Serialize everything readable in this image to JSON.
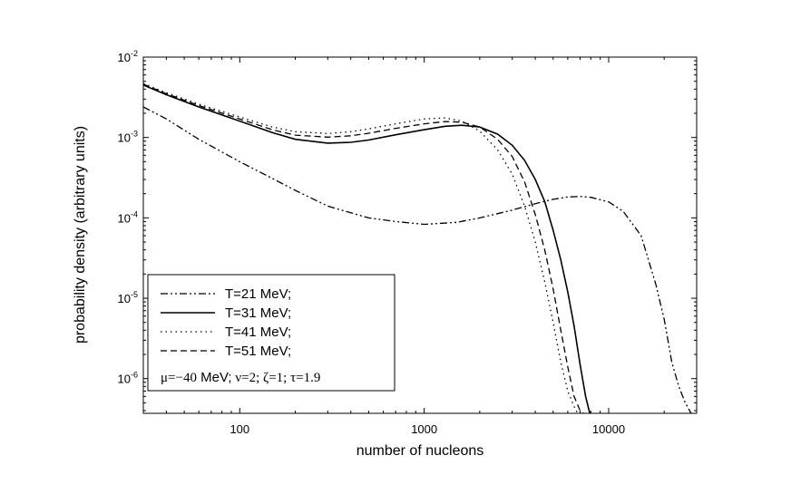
{
  "chart_data": {
    "type": "line",
    "xlabel": "number of nucleons",
    "ylabel": "probability density (arbitrary units)",
    "x_scale": "log",
    "y_scale": "log",
    "xlim": [
      30,
      30000
    ],
    "ylim": [
      3.7e-07,
      0.01
    ],
    "x_ticks": [
      {
        "value": 100,
        "label": "100"
      },
      {
        "value": 1000,
        "label": "1000"
      },
      {
        "value": 10000,
        "label": "10000"
      }
    ],
    "y_ticks": [
      {
        "value": 0.01,
        "base": "10",
        "exp": "-2"
      },
      {
        "value": 0.001,
        "base": "10",
        "exp": "-3"
      },
      {
        "value": 0.0001,
        "base": "10",
        "exp": "-4"
      },
      {
        "value": 1e-05,
        "base": "10",
        "exp": "-5"
      },
      {
        "value": 1e-06,
        "base": "10",
        "exp": "-6"
      }
    ],
    "legend_position": "lower-left",
    "series": [
      {
        "name": "T=21 MeV;",
        "style": "dash-dot-dot",
        "x": [
          30,
          40,
          60,
          100,
          150,
          200,
          300,
          500,
          700,
          1000,
          1500,
          2000,
          3000,
          4000,
          5000,
          6000,
          7000,
          8000,
          10000,
          12000,
          15000,
          18000,
          20000,
          22000,
          24000,
          26000,
          28000
        ],
        "y": [
          0.0024,
          0.0017,
          0.00095,
          0.0005,
          0.00031,
          0.00022,
          0.00014,
          0.0001,
          9e-05,
          8.3e-05,
          8.8e-05,
          0.0001,
          0.000125,
          0.00015,
          0.00017,
          0.000182,
          0.000185,
          0.00018,
          0.000158,
          0.00012,
          6e-05,
          1.5e-05,
          5.5e-06,
          1.6e-06,
          8e-07,
          5e-07,
          3.7e-07
        ]
      },
      {
        "name": "T=31 MeV;",
        "style": "solid",
        "x": [
          30,
          40,
          60,
          100,
          150,
          200,
          300,
          400,
          500,
          700,
          1000,
          1300,
          1600,
          2000,
          2500,
          3000,
          3500,
          4000,
          4500,
          5000,
          5500,
          6000,
          6500,
          7000,
          7500,
          7900
        ],
        "y": [
          0.0045,
          0.0034,
          0.0024,
          0.0016,
          0.00115,
          0.00095,
          0.00085,
          0.00087,
          0.00093,
          0.00108,
          0.00125,
          0.00138,
          0.00142,
          0.00135,
          0.0011,
          0.0008,
          0.00052,
          0.0003,
          0.00016,
          7e-05,
          3e-05,
          1.2e-05,
          4.5e-06,
          1.5e-06,
          6e-07,
          3.7e-07
        ]
      },
      {
        "name": "T=41 MeV;",
        "style": "dotted",
        "x": [
          30,
          40,
          60,
          100,
          150,
          200,
          300,
          400,
          500,
          700,
          1000,
          1300,
          1600,
          2000,
          2500,
          3000,
          3500,
          4000,
          4500,
          5000,
          5500,
          6000,
          6500,
          6800
        ],
        "y": [
          0.0047,
          0.0036,
          0.0026,
          0.0018,
          0.00135,
          0.00118,
          0.00112,
          0.00118,
          0.00128,
          0.00148,
          0.0017,
          0.00175,
          0.0016,
          0.0012,
          0.0007,
          0.00035,
          0.00014,
          5e-05,
          1.6e-05,
          5e-06,
          1.6e-06,
          7e-07,
          4.5e-07,
          3.7e-07
        ]
      },
      {
        "name": "T=51 MeV;",
        "style": "dashed",
        "x": [
          30,
          40,
          60,
          100,
          150,
          200,
          300,
          400,
          500,
          700,
          1000,
          1300,
          1600,
          2000,
          2500,
          3000,
          3500,
          4000,
          4500,
          5000,
          5500,
          6000,
          6500,
          7000,
          7300
        ],
        "y": [
          0.0046,
          0.0035,
          0.0025,
          0.0017,
          0.00125,
          0.00107,
          0.00101,
          0.00105,
          0.00113,
          0.0013,
          0.00148,
          0.00158,
          0.00155,
          0.00135,
          0.00095,
          0.00058,
          0.00028,
          0.00011,
          4e-05,
          1.3e-05,
          4e-06,
          1.4e-06,
          6e-07,
          4e-07,
          3.7e-07
        ]
      }
    ],
    "parameter_text": {
      "mu": "μ=−40",
      "mev": " MeV;",
      "rest": " ν=2; ζ=1; τ=1.9"
    }
  }
}
